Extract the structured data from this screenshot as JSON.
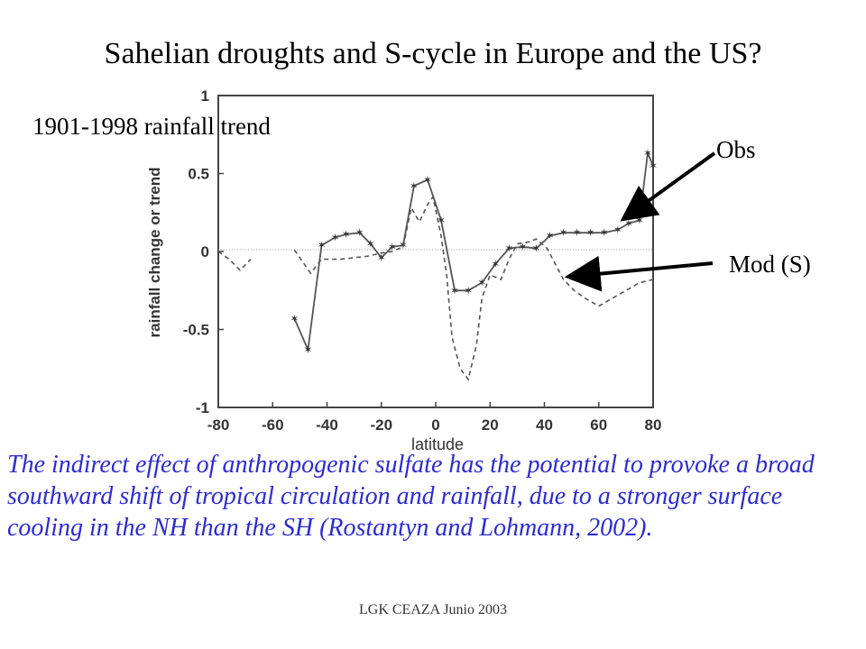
{
  "slide": {
    "title": "Sahelian droughts and S-cycle in Europe and the US?",
    "caption": "The indirect effect of anthropogenic sulfate has the potential to provoke a broad southward shift of tropical circulation and rainfall, due to a stronger surface cooling in the NH than the SH (Rostantyn and Lohmann, 2002).",
    "footer": "LGK CEAZA Junio 2003",
    "caption_color": "#2b2bd6"
  },
  "chart_data": {
    "type": "line",
    "inset_title": "1901-1998 rainfall trend",
    "xlabel": "latitude",
    "ylabel": "rainfall change or trend",
    "xlim": [
      -80,
      80
    ],
    "ylim": [
      -1,
      1
    ],
    "xticks": [
      "-80",
      "-60",
      "-40",
      "-20",
      "0",
      "20",
      "40",
      "60",
      "80"
    ],
    "yticks": [
      "1",
      "0.5",
      "0",
      "-0.5",
      "-1"
    ],
    "zero_line": true,
    "series": [
      {
        "name": "Obs",
        "style": "solid-with-markers",
        "segments": [
          [
            [
              -52,
              -0.43
            ],
            [
              -47,
              -0.63
            ],
            [
              -42,
              0.04
            ],
            [
              -37,
              0.09
            ],
            [
              -33,
              0.11
            ],
            [
              -28,
              0.12
            ],
            [
              -24,
              0.05
            ],
            [
              -20,
              -0.04
            ],
            [
              -16,
              0.03
            ],
            [
              -12,
              0.04
            ],
            [
              -8,
              0.42
            ],
            [
              -3,
              0.46
            ],
            [
              2,
              0.2
            ],
            [
              7,
              -0.25
            ],
            [
              12,
              -0.25
            ],
            [
              17,
              -0.2
            ],
            [
              22,
              -0.08
            ],
            [
              27,
              0.02
            ],
            [
              32,
              0.03
            ],
            [
              37,
              0.02
            ],
            [
              42,
              0.1
            ],
            [
              47,
              0.12
            ],
            [
              52,
              0.12
            ],
            [
              57,
              0.12
            ],
            [
              62,
              0.12
            ],
            [
              67,
              0.14
            ],
            [
              71,
              0.18
            ],
            [
              75,
              0.2
            ],
            [
              78,
              0.63
            ],
            [
              80,
              0.55
            ]
          ]
        ]
      },
      {
        "name": "Mod (S)",
        "style": "dashed",
        "segments": [
          [
            [
              -80,
              0.0
            ],
            [
              -76,
              -0.05
            ],
            [
              -72,
              -0.12
            ],
            [
              -68,
              -0.05
            ]
          ],
          [
            [
              -52,
              0.01
            ],
            [
              -46,
              -0.14
            ],
            [
              -42,
              -0.05
            ],
            [
              -35,
              -0.05
            ],
            [
              -30,
              -0.04
            ],
            [
              -25,
              -0.03
            ],
            [
              -20,
              -0.01
            ],
            [
              -16,
              0.0
            ],
            [
              -12,
              0.03
            ],
            [
              -9,
              0.28
            ],
            [
              -6,
              0.19
            ],
            [
              -3,
              0.3
            ],
            [
              -1,
              0.35
            ],
            [
              2,
              0.1
            ],
            [
              4,
              -0.15
            ],
            [
              6,
              -0.55
            ],
            [
              9,
              -0.75
            ],
            [
              12,
              -0.82
            ],
            [
              15,
              -0.6
            ],
            [
              17,
              -0.3
            ],
            [
              20,
              -0.15
            ],
            [
              24,
              -0.18
            ],
            [
              27,
              -0.05
            ],
            [
              30,
              0.05
            ],
            [
              34,
              0.06
            ],
            [
              37,
              0.08
            ],
            [
              41,
              0.02
            ],
            [
              44,
              -0.08
            ],
            [
              47,
              -0.18
            ],
            [
              51,
              -0.25
            ],
            [
              55,
              -0.3
            ],
            [
              60,
              -0.35
            ],
            [
              65,
              -0.3
            ],
            [
              70,
              -0.25
            ],
            [
              75,
              -0.2
            ],
            [
              80,
              -0.18
            ]
          ]
        ]
      }
    ],
    "annotations": [
      {
        "label": "Obs",
        "points_to": "Obs",
        "at": [
          70,
          0.22
        ]
      },
      {
        "label": "Mod (S)",
        "points_to": "Mod (S)",
        "at": [
          50,
          -0.16
        ]
      }
    ],
    "line_color": "#555555",
    "arrow_color": "#000000"
  }
}
